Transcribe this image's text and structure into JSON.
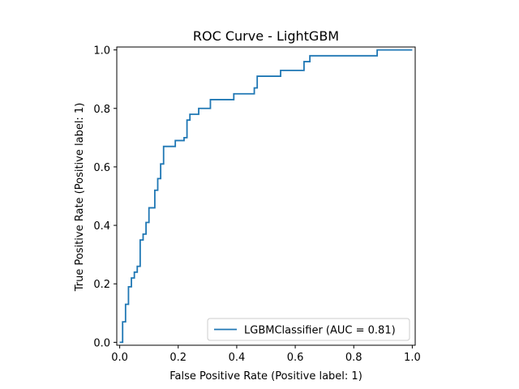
{
  "chart_data": {
    "type": "line",
    "title": "ROC Curve - LightGBM",
    "xlabel": "False Positive Rate (Positive label: 1)",
    "ylabel": "True Positive Rate (Positive label: 1)",
    "xlim": [
      -0.01,
      1.01
    ],
    "ylim": [
      -0.01,
      1.01
    ],
    "xticks": [
      "0.0",
      "0.2",
      "0.4",
      "0.6",
      "0.8",
      "1.0"
    ],
    "yticks": [
      "0.0",
      "0.2",
      "0.4",
      "0.6",
      "0.8",
      "1.0"
    ],
    "grid": false,
    "legend_position": "lower-right",
    "series": [
      {
        "name": "LGBMClassifier (AUC = 0.81)",
        "color": "#1f77b4",
        "x": [
          0.0,
          0.0,
          0.0,
          0.01,
          0.01,
          0.02,
          0.02,
          0.03,
          0.03,
          0.04,
          0.04,
          0.05,
          0.05,
          0.06,
          0.06,
          0.07,
          0.07,
          0.08,
          0.08,
          0.09,
          0.09,
          0.1,
          0.1,
          0.12,
          0.12,
          0.13,
          0.13,
          0.14,
          0.14,
          0.15,
          0.15,
          0.19,
          0.19,
          0.22,
          0.22,
          0.23,
          0.23,
          0.24,
          0.24,
          0.27,
          0.27,
          0.31,
          0.31,
          0.39,
          0.39,
          0.46,
          0.46,
          0.47,
          0.47,
          0.55,
          0.55,
          0.63,
          0.63,
          0.65,
          0.65,
          0.88,
          0.88,
          1.0
        ],
        "y": [
          0.0,
          0.0,
          0.0,
          0.0,
          0.07,
          0.07,
          0.13,
          0.13,
          0.19,
          0.19,
          0.22,
          0.22,
          0.24,
          0.24,
          0.26,
          0.26,
          0.35,
          0.35,
          0.37,
          0.37,
          0.41,
          0.41,
          0.46,
          0.46,
          0.52,
          0.52,
          0.56,
          0.56,
          0.61,
          0.61,
          0.67,
          0.67,
          0.69,
          0.69,
          0.7,
          0.7,
          0.76,
          0.76,
          0.78,
          0.78,
          0.8,
          0.8,
          0.83,
          0.83,
          0.85,
          0.85,
          0.87,
          0.87,
          0.91,
          0.91,
          0.93,
          0.93,
          0.96,
          0.96,
          0.98,
          0.98,
          1.0,
          1.0
        ]
      }
    ]
  }
}
